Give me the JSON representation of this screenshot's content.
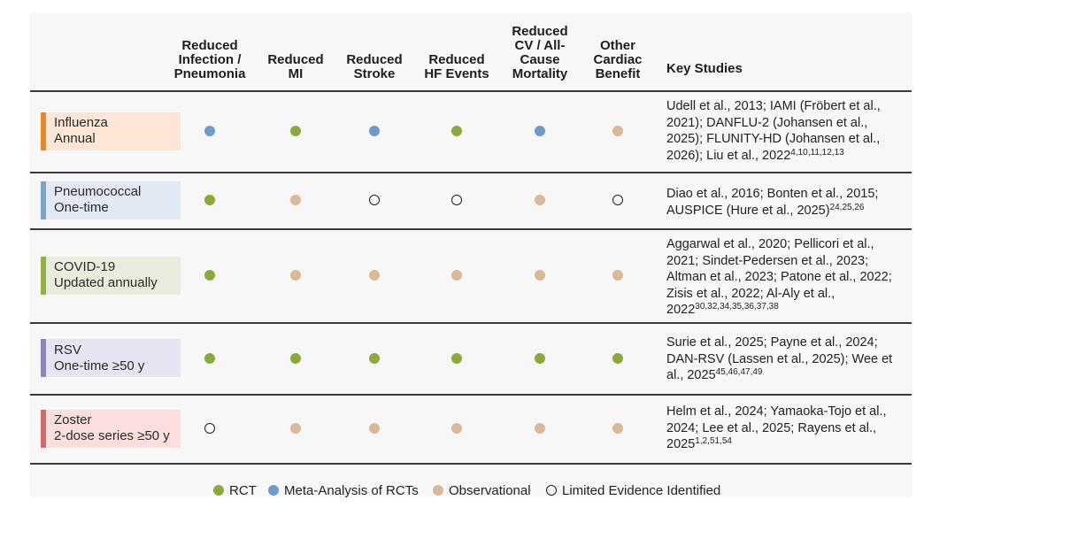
{
  "colors": {
    "rct": "#8aab3c",
    "meta": "#6f9bcb",
    "obs": "#dbb897",
    "limited": "#ffffff"
  },
  "columns": [
    "Reduced\nInfection /\nPneumonia",
    "Reduced\nMI",
    "Reduced\nStroke",
    "Reduced\nHF Events",
    "Reduced\nCV / All-\nCause\nMortality",
    "Other\nCardiac\nBenefit"
  ],
  "key_studies_header": "Key Studies",
  "rows": [
    {
      "name": "Influenza",
      "schedule": "Annual",
      "bar_color": "#e8862b",
      "bg_color": "#fde6d6",
      "evidence": [
        "meta",
        "rct",
        "meta",
        "rct",
        "meta",
        "obs"
      ],
      "studies": "Udell et al., 2013; IAMI (Fröbert et al., 2021); DANFLU-2 (Johansen et al., 2025); FLUNITY-HD (Johansen et al., 2026); Liu et al., 2022",
      "refs": "4,10,11,12,13"
    },
    {
      "name": "Pneumococcal",
      "schedule": "One-time",
      "bar_color": "#7aa3cf",
      "bg_color": "#e3e8f5",
      "evidence": [
        "rct",
        "obs",
        "limited",
        "limited",
        "obs",
        "limited"
      ],
      "studies": "Diao et al., 2016; Bonten et al., 2015; AUSPICE (Hure et al., 2025)",
      "refs": "24,25,26"
    },
    {
      "name": "COVID-19",
      "schedule": "Updated annually",
      "bar_color": "#93b045",
      "bg_color": "#e9ecdd",
      "evidence": [
        "rct",
        "obs",
        "obs",
        "obs",
        "obs",
        "obs"
      ],
      "studies": "Aggarwal et al., 2020; Pellicori et al., 2021; Sindet-Pedersen et al., 2023; Altman et al., 2023; Patone et al., 2022; Zisis et al., 2022; Al-Aly et al., 2022",
      "refs": "30,32,34,35,36,37,38"
    },
    {
      "name": "RSV",
      "schedule": "One-time ≥50 y",
      "bar_color": "#8c85bf",
      "bg_color": "#e6e3f3",
      "evidence": [
        "rct",
        "rct",
        "rct",
        "rct",
        "rct",
        "rct"
      ],
      "studies": "Surie et al., 2025; Payne et al., 2024; DAN-RSV (Lassen et al., 2025); Wee et al., 2025",
      "refs": "45,46,47,49"
    },
    {
      "name": "Zoster",
      "schedule": "2-dose series ≥50 y",
      "bar_color": "#d06b66",
      "bg_color": "#fbdedd",
      "evidence": [
        "limited",
        "obs",
        "obs",
        "obs",
        "obs",
        "obs"
      ],
      "studies": "Helm et al., 2024; Yamaoka-Tojo et al., 2024; Lee et al., 2025; Rayens et al., 2025",
      "refs": "1,2,51,54"
    }
  ],
  "legend": [
    {
      "type": "rct",
      "label": "RCT"
    },
    {
      "type": "meta",
      "label": "Meta-Analysis of RCTs"
    },
    {
      "type": "obs",
      "label": "Observational"
    },
    {
      "type": "limited",
      "label": "Limited Evidence Identified"
    }
  ]
}
